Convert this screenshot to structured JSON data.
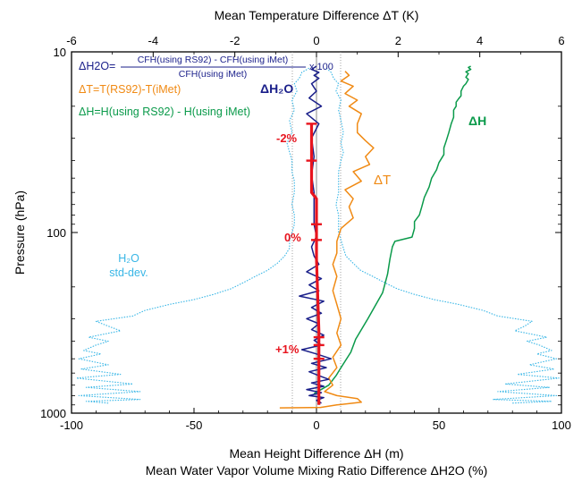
{
  "chart_data": {
    "type": "line",
    "title": "",
    "y_axis": {
      "label": "Pressure (hPa)",
      "scale": "log",
      "inverted": true,
      "range": [
        10,
        1000
      ],
      "tick_labels": [
        "10",
        "100",
        "1000"
      ]
    },
    "x_axis_bottom": {
      "label": "Mean Height Difference ΔH (m)",
      "label2": "Mean Water Vapor Volume Mixing Ratio Difference ΔH2O (%)",
      "range": [
        -100,
        100
      ],
      "tick_labels": [
        "-100",
        "-50",
        "0",
        "50",
        "100"
      ]
    },
    "x_axis_top": {
      "label": "Mean Temperature Difference ΔT (K)",
      "range": [
        -6,
        6
      ],
      "tick_labels": [
        "-6",
        "-4",
        "-2",
        "0",
        "2",
        "4",
        "6"
      ]
    },
    "grid": false,
    "legend": {
      "placement": "top-left",
      "dh2o_prefix": "ΔH2O=",
      "dh2o_numerator": "CFH(using RS92) - CFH(using iMet)",
      "dh2o_denominator": "CFH(using iMet)",
      "dh2o_suffix": "x 100",
      "dt_text": "ΔT=T(RS92)-T(iMet)",
      "dh_text": "ΔH=H(using RS92) - H(using iMet)"
    },
    "annotations": {
      "dh2o": "ΔH₂O",
      "dt": "ΔT",
      "dh": "ΔH",
      "std1": "H₂O",
      "std2": "std-dev.",
      "pct_m2": "-2%",
      "pct_0": "0%",
      "pct_p1": "+1%"
    },
    "colors": {
      "dh2o": "#1a1f8a",
      "dt": "#f08a14",
      "dh": "#0a9a4a",
      "stddev": "#38b6e6",
      "mean_marker": "#e8141e",
      "lightred": "#e68a96",
      "refline": "#9a9a9a"
    },
    "series": [
      {
        "name": "ΔH",
        "axis": "bottom",
        "points": [
          [
            -1,
            780
          ],
          [
            5,
            700
          ],
          [
            8,
            620
          ],
          [
            10,
            560
          ],
          [
            14,
            460
          ],
          [
            16,
            390
          ],
          [
            21,
            300
          ],
          [
            27,
            215
          ],
          [
            29,
            170
          ],
          [
            30,
            140
          ],
          [
            31,
            120
          ],
          [
            32,
            112
          ],
          [
            39,
            106
          ],
          [
            40,
            95
          ],
          [
            40,
            87
          ],
          [
            42,
            80
          ],
          [
            43,
            72
          ],
          [
            44,
            64
          ],
          [
            46,
            56
          ],
          [
            47,
            50
          ],
          [
            49,
            45
          ],
          [
            50,
            41
          ],
          [
            52,
            37
          ],
          [
            52,
            34
          ],
          [
            53,
            31
          ],
          [
            54,
            28
          ],
          [
            55,
            25
          ],
          [
            56,
            23
          ],
          [
            56,
            21
          ],
          [
            57,
            20
          ],
          [
            57,
            19
          ],
          [
            58,
            18.2
          ],
          [
            59,
            17.5
          ],
          [
            59,
            16.5
          ],
          [
            60,
            15.5
          ],
          [
            61,
            15
          ],
          [
            62,
            14.2
          ],
          [
            61,
            13.8
          ],
          [
            62,
            13.2
          ],
          [
            61,
            12.9
          ],
          [
            63,
            12.5
          ],
          [
            62,
            12.2
          ],
          [
            63,
            12.0
          ]
        ]
      },
      {
        "name": "ΔT",
        "axis": "top",
        "points": [
          [
            -0.9,
            935
          ],
          [
            0.1,
            930
          ],
          [
            0.5,
            900
          ],
          [
            1.1,
            870
          ],
          [
            1.0,
            830
          ],
          [
            0.5,
            800
          ],
          [
            0.2,
            760
          ],
          [
            0.4,
            700
          ],
          [
            0.3,
            640
          ],
          [
            0.5,
            560
          ],
          [
            0.4,
            490
          ],
          [
            0.6,
            420
          ],
          [
            0.5,
            360
          ],
          [
            0.6,
            300
          ],
          [
            0.5,
            250
          ],
          [
            0.4,
            210
          ],
          [
            0.5,
            175
          ],
          [
            0.4,
            150
          ],
          [
            0.5,
            130
          ],
          [
            0.5,
            112
          ],
          [
            0.6,
            95
          ],
          [
            0.9,
            83
          ],
          [
            0.8,
            72
          ],
          [
            0.9,
            65
          ],
          [
            0.7,
            58
          ],
          [
            1.1,
            52
          ],
          [
            0.9,
            46
          ],
          [
            1.3,
            42
          ],
          [
            1.2,
            38
          ],
          [
            1.4,
            34
          ],
          [
            1.2,
            31
          ],
          [
            1.0,
            28
          ],
          [
            1.0,
            25
          ],
          [
            1.1,
            22
          ],
          [
            0.8,
            20
          ],
          [
            1.0,
            18.5
          ],
          [
            0.7,
            17
          ],
          [
            0.9,
            15.5
          ],
          [
            0.6,
            14.5
          ],
          [
            0.8,
            13.5
          ],
          [
            0.7,
            12.8
          ]
        ]
      },
      {
        "name": "ΔH2O",
        "axis": "bottom",
        "points": [
          [
            2,
            880
          ],
          [
            0,
            850
          ],
          [
            3,
            820
          ],
          [
            -3,
            800
          ],
          [
            2,
            770
          ],
          [
            -4,
            740
          ],
          [
            3,
            710
          ],
          [
            -2,
            680
          ],
          [
            5,
            650
          ],
          [
            1,
            620
          ],
          [
            -3,
            590
          ],
          [
            4,
            560
          ],
          [
            -2,
            530
          ],
          [
            6,
            500
          ],
          [
            0,
            470
          ],
          [
            -6,
            445
          ],
          [
            2,
            420
          ],
          [
            -1,
            395
          ],
          [
            3,
            370
          ],
          [
            -2,
            345
          ],
          [
            1,
            320
          ],
          [
            -4,
            300
          ],
          [
            2,
            280
          ],
          [
            -2,
            260
          ],
          [
            3,
            240
          ],
          [
            -7,
            225
          ],
          [
            1,
            210
          ],
          [
            -3,
            195
          ],
          [
            2,
            180
          ],
          [
            -4,
            165
          ],
          [
            1,
            150
          ],
          [
            -1,
            135
          ],
          [
            -2,
            120
          ],
          [
            0,
            105
          ],
          [
            -1,
            90
          ],
          [
            -1,
            75
          ],
          [
            -1,
            60
          ],
          [
            -2,
            48
          ],
          [
            -1,
            38
          ],
          [
            -2,
            30
          ],
          [
            1,
            25
          ],
          [
            -4,
            22
          ],
          [
            2,
            20
          ],
          [
            -3,
            18
          ],
          [
            0,
            16.5
          ],
          [
            -2,
            15
          ],
          [
            1,
            14
          ],
          [
            -1,
            13.5
          ],
          [
            1,
            13
          ],
          [
            -2,
            12.5
          ],
          [
            0,
            12
          ]
        ]
      },
      {
        "name": "H2O std-dev.",
        "axis": "bottom",
        "points": [
          [
            -85,
            880
          ],
          [
            -94,
            860
          ],
          [
            -72,
            840
          ],
          [
            -97,
            800
          ],
          [
            -72,
            760
          ],
          [
            -94,
            720
          ],
          [
            -75,
            690
          ],
          [
            -98,
            640
          ],
          [
            -80,
            610
          ],
          [
            -96,
            570
          ],
          [
            -85,
            540
          ],
          [
            -97,
            500
          ],
          [
            -88,
            470
          ],
          [
            -95,
            450
          ],
          [
            -90,
            420
          ],
          [
            -85,
            400
          ],
          [
            -93,
            380
          ],
          [
            -80,
            350
          ],
          [
            -85,
            330
          ],
          [
            -90,
            310
          ],
          [
            -75,
            290
          ],
          [
            -70,
            270
          ],
          [
            -60,
            250
          ],
          [
            -50,
            235
          ],
          [
            -42,
            220
          ],
          [
            -35,
            205
          ],
          [
            -30,
            190
          ],
          [
            -25,
            175
          ],
          [
            -20,
            162
          ],
          [
            -16,
            148
          ],
          [
            -13,
            135
          ],
          [
            -11,
            122
          ],
          [
            -11,
            110
          ],
          [
            -10,
            100
          ],
          [
            -9,
            90
          ],
          [
            -9,
            80
          ],
          [
            -10,
            70
          ],
          [
            -9,
            60
          ],
          [
            -9,
            52
          ],
          [
            -10,
            46
          ],
          [
            -10,
            40
          ],
          [
            -11,
            36
          ],
          [
            -12,
            32
          ],
          [
            -10,
            28
          ],
          [
            -11,
            24
          ],
          [
            -9,
            21
          ],
          [
            -10,
            18.5
          ],
          [
            -8,
            16.5
          ],
          [
            -9,
            15
          ],
          [
            -7,
            14
          ],
          [
            -6,
            13
          ],
          [
            -3,
            12.3
          ]
        ]
      },
      {
        "name": "H2O std-dev. (positive)",
        "axis": "bottom",
        "points": [
          [
            80,
            880
          ],
          [
            96,
            860
          ],
          [
            72,
            840
          ],
          [
            98,
            800
          ],
          [
            74,
            760
          ],
          [
            95,
            720
          ],
          [
            77,
            690
          ],
          [
            99,
            640
          ],
          [
            82,
            610
          ],
          [
            97,
            570
          ],
          [
            87,
            540
          ],
          [
            98,
            500
          ],
          [
            90,
            470
          ],
          [
            96,
            450
          ],
          [
            91,
            420
          ],
          [
            86,
            400
          ],
          [
            94,
            380
          ],
          [
            81,
            350
          ],
          [
            85,
            330
          ],
          [
            88,
            310
          ],
          [
            74,
            290
          ],
          [
            68,
            270
          ],
          [
            58,
            250
          ],
          [
            48,
            235
          ],
          [
            40,
            220
          ],
          [
            33,
            205
          ],
          [
            28,
            190
          ],
          [
            23,
            175
          ],
          [
            18,
            162
          ],
          [
            15,
            148
          ],
          [
            12,
            135
          ],
          [
            11,
            122
          ],
          [
            10,
            110
          ],
          [
            9,
            100
          ],
          [
            9,
            90
          ],
          [
            9,
            80
          ],
          [
            8,
            70
          ],
          [
            9,
            60
          ],
          [
            9,
            52
          ],
          [
            9,
            46
          ],
          [
            10,
            40
          ],
          [
            11,
            36
          ],
          [
            10,
            32
          ],
          [
            11,
            28
          ],
          [
            10,
            24
          ],
          [
            9,
            21
          ],
          [
            10,
            18.5
          ],
          [
            8,
            16.5
          ],
          [
            9,
            15
          ],
          [
            7,
            14
          ],
          [
            6,
            13
          ],
          [
            4,
            12.3
          ]
        ]
      },
      {
        "name": "Mean ΔH2O",
        "axis": "bottom",
        "points": [
          [
            -2,
            25
          ],
          [
            -2,
            60
          ],
          [
            0,
            65
          ],
          [
            0,
            140
          ],
          [
            1,
            350
          ],
          [
            1,
            900
          ]
        ]
      }
    ]
  }
}
